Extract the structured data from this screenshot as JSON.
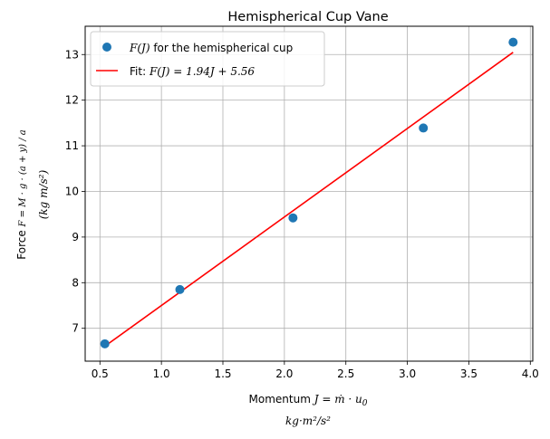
{
  "chart_data": {
    "type": "scatter",
    "title": "Hemispherical Cup Vane",
    "xlabel_line1_prefix": "Momentum ",
    "xlabel_line1_math": "J = ṁ · u",
    "xlabel_line1_sub": "0",
    "xlabel_line2": "kg·m²/s²",
    "ylabel_line1_prefix": "Force ",
    "ylabel_line1_math": "F = M · g · (a + y) / a",
    "ylabel_line2": "(kg m/s²)",
    "xlim": [
      0.38,
      4.02
    ],
    "ylim": [
      6.28,
      13.62
    ],
    "xticks": [
      0.5,
      1.0,
      1.5,
      2.0,
      2.5,
      3.0,
      3.5,
      4.0
    ],
    "xtick_labels": [
      "0.5",
      "1.0",
      "1.5",
      "2.0",
      "2.5",
      "3.0",
      "3.5",
      "4.0"
    ],
    "yticks": [
      7,
      8,
      9,
      10,
      11,
      12,
      13
    ],
    "ytick_labels": [
      "7",
      "8",
      "9",
      "10",
      "11",
      "12",
      "13"
    ],
    "grid": true,
    "legend_position": "upper-left",
    "series": [
      {
        "name": "F(J) for the hemispherical cup",
        "kind": "scatter",
        "color": "#1f77b4",
        "x": [
          0.54,
          1.15,
          2.07,
          3.13,
          3.86
        ],
        "y": [
          6.66,
          7.85,
          9.42,
          11.39,
          13.27
        ]
      },
      {
        "name": "Fit: F(J) = 1.94J + 5.56",
        "kind": "line",
        "color": "#ff0000",
        "slope": 1.94,
        "intercept": 5.56,
        "x": [
          0.54,
          3.86
        ],
        "y": [
          6.608,
          13.048
        ]
      }
    ],
    "legend": [
      {
        "label_math": "F(J)",
        "label_text": " for the hemispherical cup"
      },
      {
        "label_text": "Fit: ",
        "label_math": "F(J) = 1.94J + 5.56"
      }
    ]
  }
}
